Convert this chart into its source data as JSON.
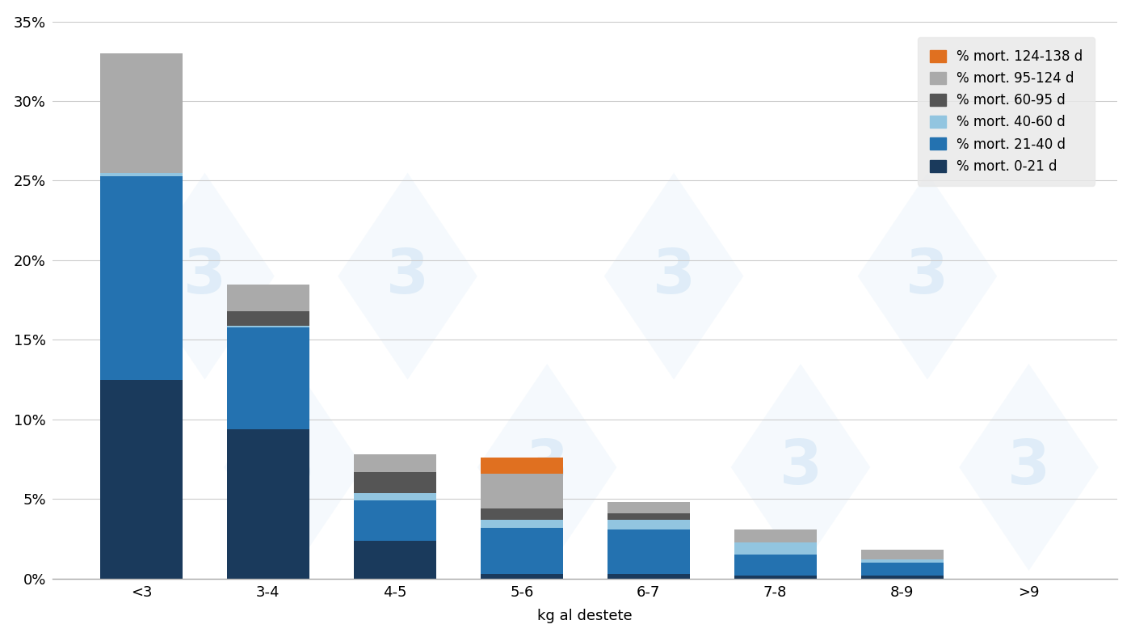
{
  "categories": [
    "<3",
    "3-4",
    "4-5",
    "5-6",
    "6-7",
    "7-8",
    "8-9",
    ">9"
  ],
  "series": [
    {
      "label": "% mort. 0-21 d",
      "color": "#1a3a5c",
      "values": [
        12.5,
        9.4,
        2.4,
        0.3,
        0.3,
        0.2,
        0.2,
        0.0
      ]
    },
    {
      "label": "% mort. 21-40 d",
      "color": "#2472b0",
      "values": [
        12.8,
        6.4,
        2.5,
        2.9,
        2.8,
        1.3,
        0.8,
        0.0
      ]
    },
    {
      "label": "% mort. 40-60 d",
      "color": "#92c5e0",
      "values": [
        0.2,
        0.1,
        0.5,
        0.5,
        0.6,
        0.8,
        0.2,
        0.0
      ]
    },
    {
      "label": "% mort. 60-95 d",
      "color": "#555555",
      "values": [
        0.0,
        0.9,
        1.3,
        0.7,
        0.4,
        0.0,
        0.0,
        0.0
      ]
    },
    {
      "label": "% mort. 95-124 d",
      "color": "#aaaaaa",
      "values": [
        7.5,
        1.7,
        1.1,
        2.2,
        0.7,
        0.8,
        0.6,
        0.0
      ]
    },
    {
      "label": "% mort. 124-138 d",
      "color": "#e07020",
      "values": [
        0.0,
        0.0,
        0.0,
        1.0,
        0.0,
        0.0,
        0.0,
        0.0
      ]
    }
  ],
  "xlabel": "kg al destete",
  "ylim": [
    0,
    0.355
  ],
  "yticks": [
    0.0,
    0.05,
    0.1,
    0.15,
    0.2,
    0.25,
    0.3,
    0.35
  ],
  "ytick_labels": [
    "0%",
    "5%",
    "10%",
    "15%",
    "20%",
    "25%",
    "30%",
    "35%"
  ],
  "background_color": "#ffffff",
  "bar_width": 0.65,
  "watermark_color": "#cde3f5",
  "legend_facecolor": "#e8e8e8"
}
